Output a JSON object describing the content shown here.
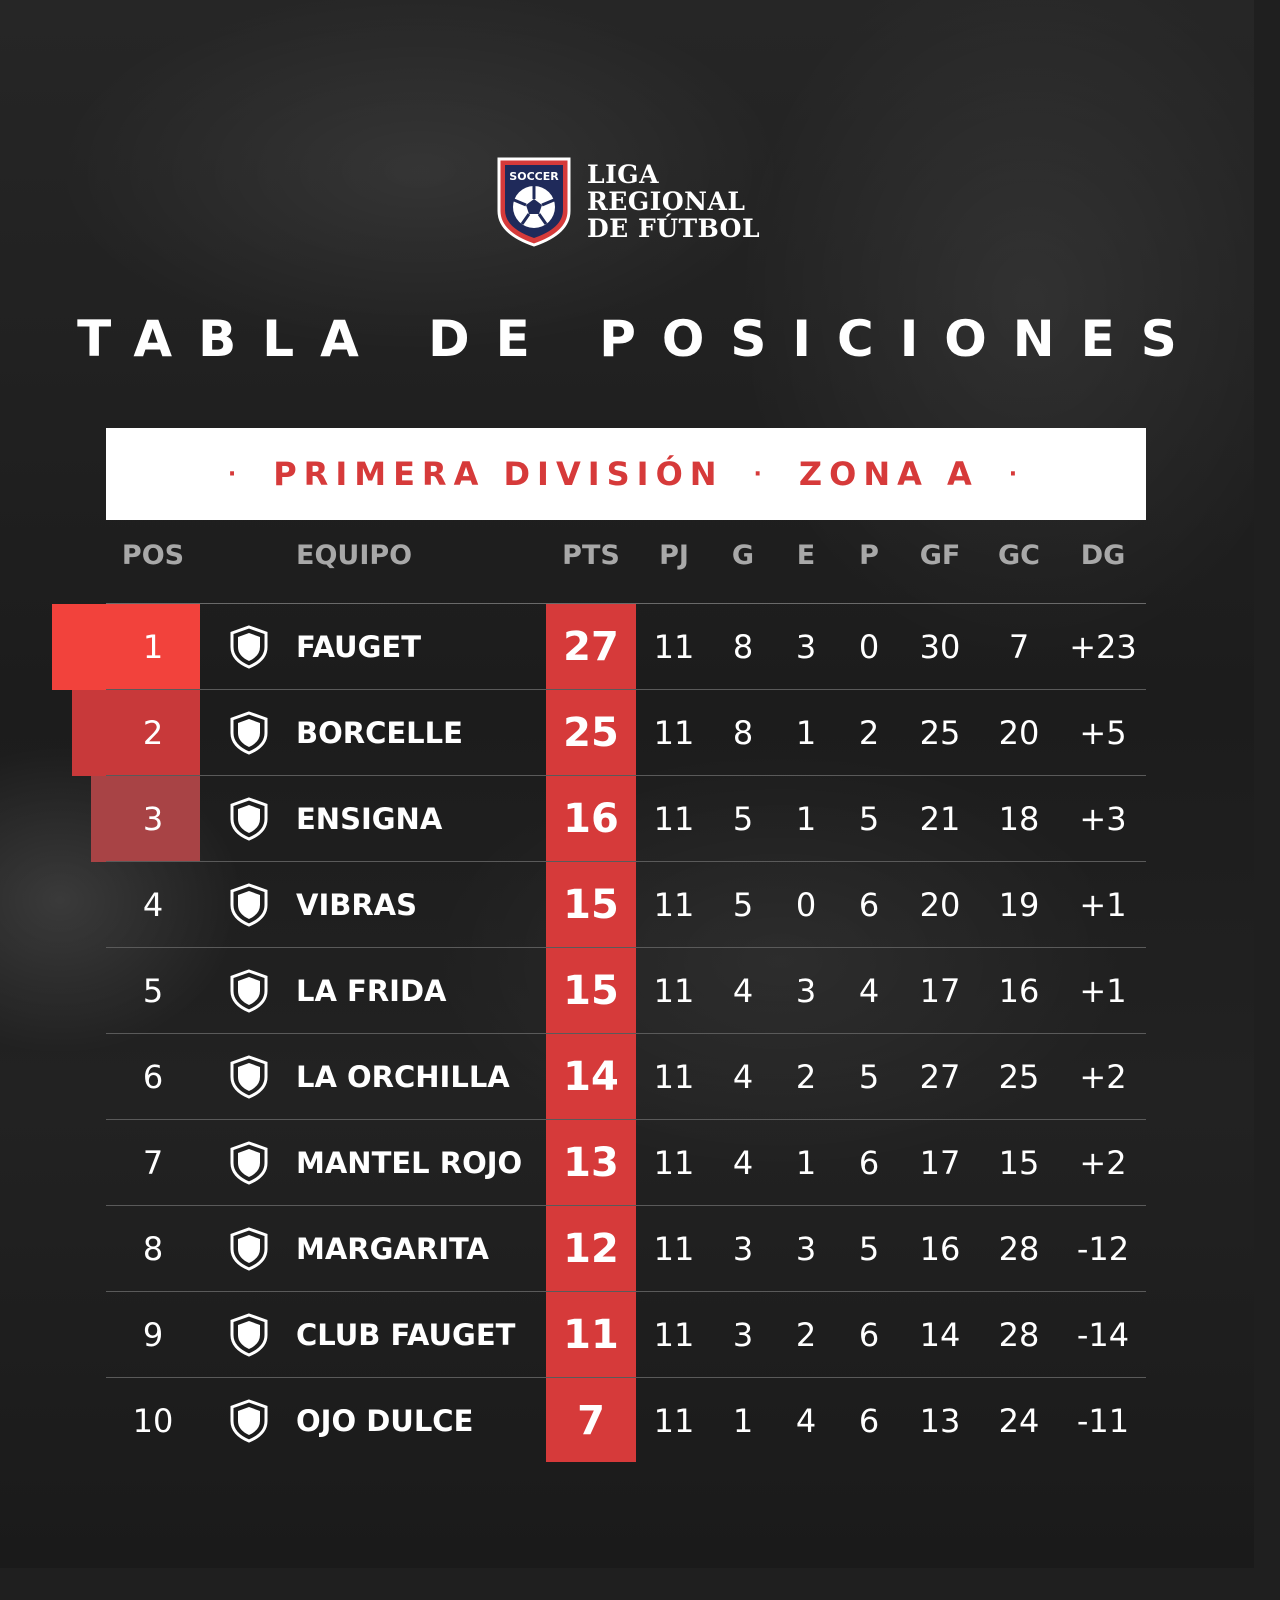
{
  "logo": {
    "badge_text": "SOCCER",
    "line1": "LIGA",
    "line2": "REGIONAL",
    "line3": "DE FÚTBOL",
    "badge_icon": "soccer-ball-icon"
  },
  "title": "TABLA DE POSICIONES",
  "division": {
    "bullet": "·",
    "primary": "PRIMERA DIVISIÓN",
    "secondary": "ZONA A"
  },
  "colors": {
    "accent": "#d63a3a",
    "pos1": "#f2423c",
    "pos2": "#c8393a",
    "pos3": "#a84345"
  },
  "columns": {
    "pos": "POS",
    "equipo": "EQUIPO",
    "pts": "PTS",
    "pj": "PJ",
    "g": "G",
    "e": "E",
    "p": "P",
    "gf": "GF",
    "gc": "GC",
    "dg": "DG"
  },
  "rows": [
    {
      "pos": "1",
      "team": "FAUGET",
      "pts": "27",
      "pj": "11",
      "g": "8",
      "e": "3",
      "p": "0",
      "gf": "30",
      "gc": "7",
      "dg": "+23"
    },
    {
      "pos": "2",
      "team": "BORCELLE",
      "pts": "25",
      "pj": "11",
      "g": "8",
      "e": "1",
      "p": "2",
      "gf": "25",
      "gc": "20",
      "dg": "+5"
    },
    {
      "pos": "3",
      "team": "ENSIGNA",
      "pts": "16",
      "pj": "11",
      "g": "5",
      "e": "1",
      "p": "5",
      "gf": "21",
      "gc": "18",
      "dg": "+3"
    },
    {
      "pos": "4",
      "team": "VIBRAS",
      "pts": "15",
      "pj": "11",
      "g": "5",
      "e": "0",
      "p": "6",
      "gf": "20",
      "gc": "19",
      "dg": "+1"
    },
    {
      "pos": "5",
      "team": "LA FRIDA",
      "pts": "15",
      "pj": "11",
      "g": "4",
      "e": "3",
      "p": "4",
      "gf": "17",
      "gc": "16",
      "dg": "+1"
    },
    {
      "pos": "6",
      "team": "LA ORCHILLA",
      "pts": "14",
      "pj": "11",
      "g": "4",
      "e": "2",
      "p": "5",
      "gf": "27",
      "gc": "25",
      "dg": "+2"
    },
    {
      "pos": "7",
      "team": "MANTEL ROJO",
      "pts": "13",
      "pj": "11",
      "g": "4",
      "e": "1",
      "p": "6",
      "gf": "17",
      "gc": "15",
      "dg": "+2"
    },
    {
      "pos": "8",
      "team": "MARGARITA",
      "pts": "12",
      "pj": "11",
      "g": "3",
      "e": "3",
      "p": "5",
      "gf": "16",
      "gc": "28",
      "dg": "-12"
    },
    {
      "pos": "9",
      "team": "CLUB FAUGET",
      "pts": "11",
      "pj": "11",
      "g": "3",
      "e": "2",
      "p": "6",
      "gf": "14",
      "gc": "28",
      "dg": "-14"
    },
    {
      "pos": "10",
      "team": "OJO DULCE",
      "pts": "7",
      "pj": "11",
      "g": "1",
      "e": "4",
      "p": "6",
      "gf": "13",
      "gc": "24",
      "dg": "-11"
    }
  ]
}
